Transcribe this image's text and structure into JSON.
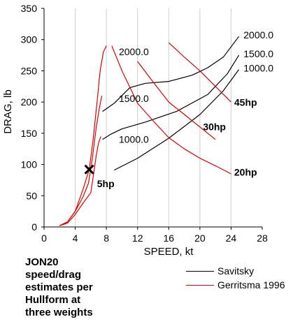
{
  "chart_data": {
    "type": "line",
    "xlabel": "SPEED, kt",
    "ylabel": "DRAG, lb",
    "xlim": [
      0,
      28
    ],
    "ylim": [
      0,
      350
    ],
    "xticks": [
      "0",
      "4",
      "8",
      "12",
      "16",
      "20",
      "24",
      "28"
    ],
    "yticks": [
      "0",
      "50",
      "100",
      "150",
      "200",
      "250",
      "300",
      "350"
    ],
    "grid": "vertical",
    "caption": [
      "JON20",
      "speed/drag",
      "estimates per",
      "Hullform at",
      "three weights"
    ],
    "legend_position": "bottom-right",
    "series": [
      {
        "name": "Savitsky",
        "group": "Savitsky",
        "color": "#000000",
        "label": "1000.0",
        "points": [
          [
            9,
            91
          ],
          [
            12,
            110
          ],
          [
            16,
            142
          ],
          [
            20,
            180
          ],
          [
            23,
            218
          ],
          [
            25,
            252
          ]
        ]
      },
      {
        "name": "Savitsky",
        "group": "Savitsky",
        "color": "#000000",
        "label": "1500.0",
        "points": [
          [
            7.5,
            140
          ],
          [
            8.5,
            148
          ],
          [
            10,
            157
          ],
          [
            13,
            168
          ],
          [
            17,
            185
          ],
          [
            21,
            212
          ],
          [
            23.5,
            245
          ],
          [
            25,
            275
          ]
        ]
      },
      {
        "name": "Savitsky",
        "group": "Savitsky",
        "color": "#000000",
        "label": "2000.0",
        "points": [
          [
            7.5,
            185
          ],
          [
            9,
            198
          ],
          [
            11,
            223
          ],
          [
            13,
            230
          ],
          [
            16,
            233
          ],
          [
            19,
            243
          ],
          [
            21,
            255
          ],
          [
            23,
            272
          ],
          [
            25,
            305
          ]
        ]
      },
      {
        "name": "Gerritsma 1996",
        "group": "Gerritsma 1996",
        "color": "#dd0000",
        "label": "",
        "points": [
          [
            2,
            2
          ],
          [
            3,
            6
          ],
          [
            4,
            20
          ],
          [
            5,
            38
          ],
          [
            6,
            55
          ],
          [
            6.3,
            80
          ],
          [
            6.7,
            115
          ],
          [
            7,
            135
          ],
          [
            7.3,
            145
          ]
        ]
      },
      {
        "name": "Gerritsma 1996",
        "group": "Gerritsma 1996",
        "color": "#dd0000",
        "label": "",
        "points": [
          [
            2,
            2
          ],
          [
            3,
            8
          ],
          [
            4,
            25
          ],
          [
            5,
            48
          ],
          [
            5.7,
            70
          ],
          [
            6.2,
            110
          ],
          [
            6.7,
            160
          ],
          [
            7.1,
            190
          ],
          [
            7.4,
            210
          ]
        ]
      },
      {
        "name": "Gerritsma 1996",
        "group": "Gerritsma 1996",
        "color": "#dd0000",
        "label": "",
        "points": [
          [
            2,
            2
          ],
          [
            3,
            8
          ],
          [
            4,
            25
          ],
          [
            5,
            60
          ],
          [
            5.8,
            92
          ],
          [
            6.3,
            140
          ],
          [
            6.8,
            200
          ],
          [
            7.2,
            250
          ],
          [
            7.6,
            280
          ],
          [
            8,
            290
          ]
        ]
      },
      {
        "name": "Gerritsma 1996",
        "group": "Gerritsma 1996",
        "color": "#dd0000",
        "label": "20hp",
        "points": [
          [
            8.7,
            290
          ],
          [
            10,
            250
          ],
          [
            12,
            198
          ],
          [
            14,
            170
          ],
          [
            16,
            143
          ],
          [
            18,
            125
          ],
          [
            20,
            110
          ],
          [
            22,
            98
          ],
          [
            24,
            85
          ]
        ]
      },
      {
        "name": "Gerritsma 1996",
        "group": "Gerritsma 1996",
        "color": "#dd0000",
        "label": "30hp",
        "points": [
          [
            12,
            265
          ],
          [
            14,
            232
          ],
          [
            16,
            200
          ],
          [
            18,
            180
          ],
          [
            20,
            160
          ],
          [
            22,
            140
          ]
        ]
      },
      {
        "name": "Gerritsma 1996",
        "group": "Gerritsma 1996",
        "color": "#dd0000",
        "label": "45hp",
        "points": [
          [
            16,
            295
          ],
          [
            18,
            272
          ],
          [
            20,
            250
          ],
          [
            22,
            225
          ],
          [
            24,
            200
          ]
        ]
      }
    ],
    "annotations": [
      {
        "text": "2000.0",
        "x": 9.6,
        "y": 275
      },
      {
        "text": "1500.0",
        "x": 9.6,
        "y": 200
      },
      {
        "text": "1000.0",
        "x": 9.6,
        "y": 135
      },
      {
        "text": "2000.0",
        "x": 25.6,
        "y": 302
      },
      {
        "text": "1500.0",
        "x": 25.6,
        "y": 272
      },
      {
        "text": "1000.0",
        "x": 25.6,
        "y": 249
      },
      {
        "text": "45hp",
        "x": 24.4,
        "y": 194
      },
      {
        "text": "30hp",
        "x": 20.4,
        "y": 155
      },
      {
        "text": "20hp",
        "x": 24.4,
        "y": 82
      },
      {
        "text": "5hp",
        "x": 6.8,
        "y": 64
      }
    ],
    "marker": {
      "symbol": "X",
      "x": 5.8,
      "y": 92
    }
  }
}
